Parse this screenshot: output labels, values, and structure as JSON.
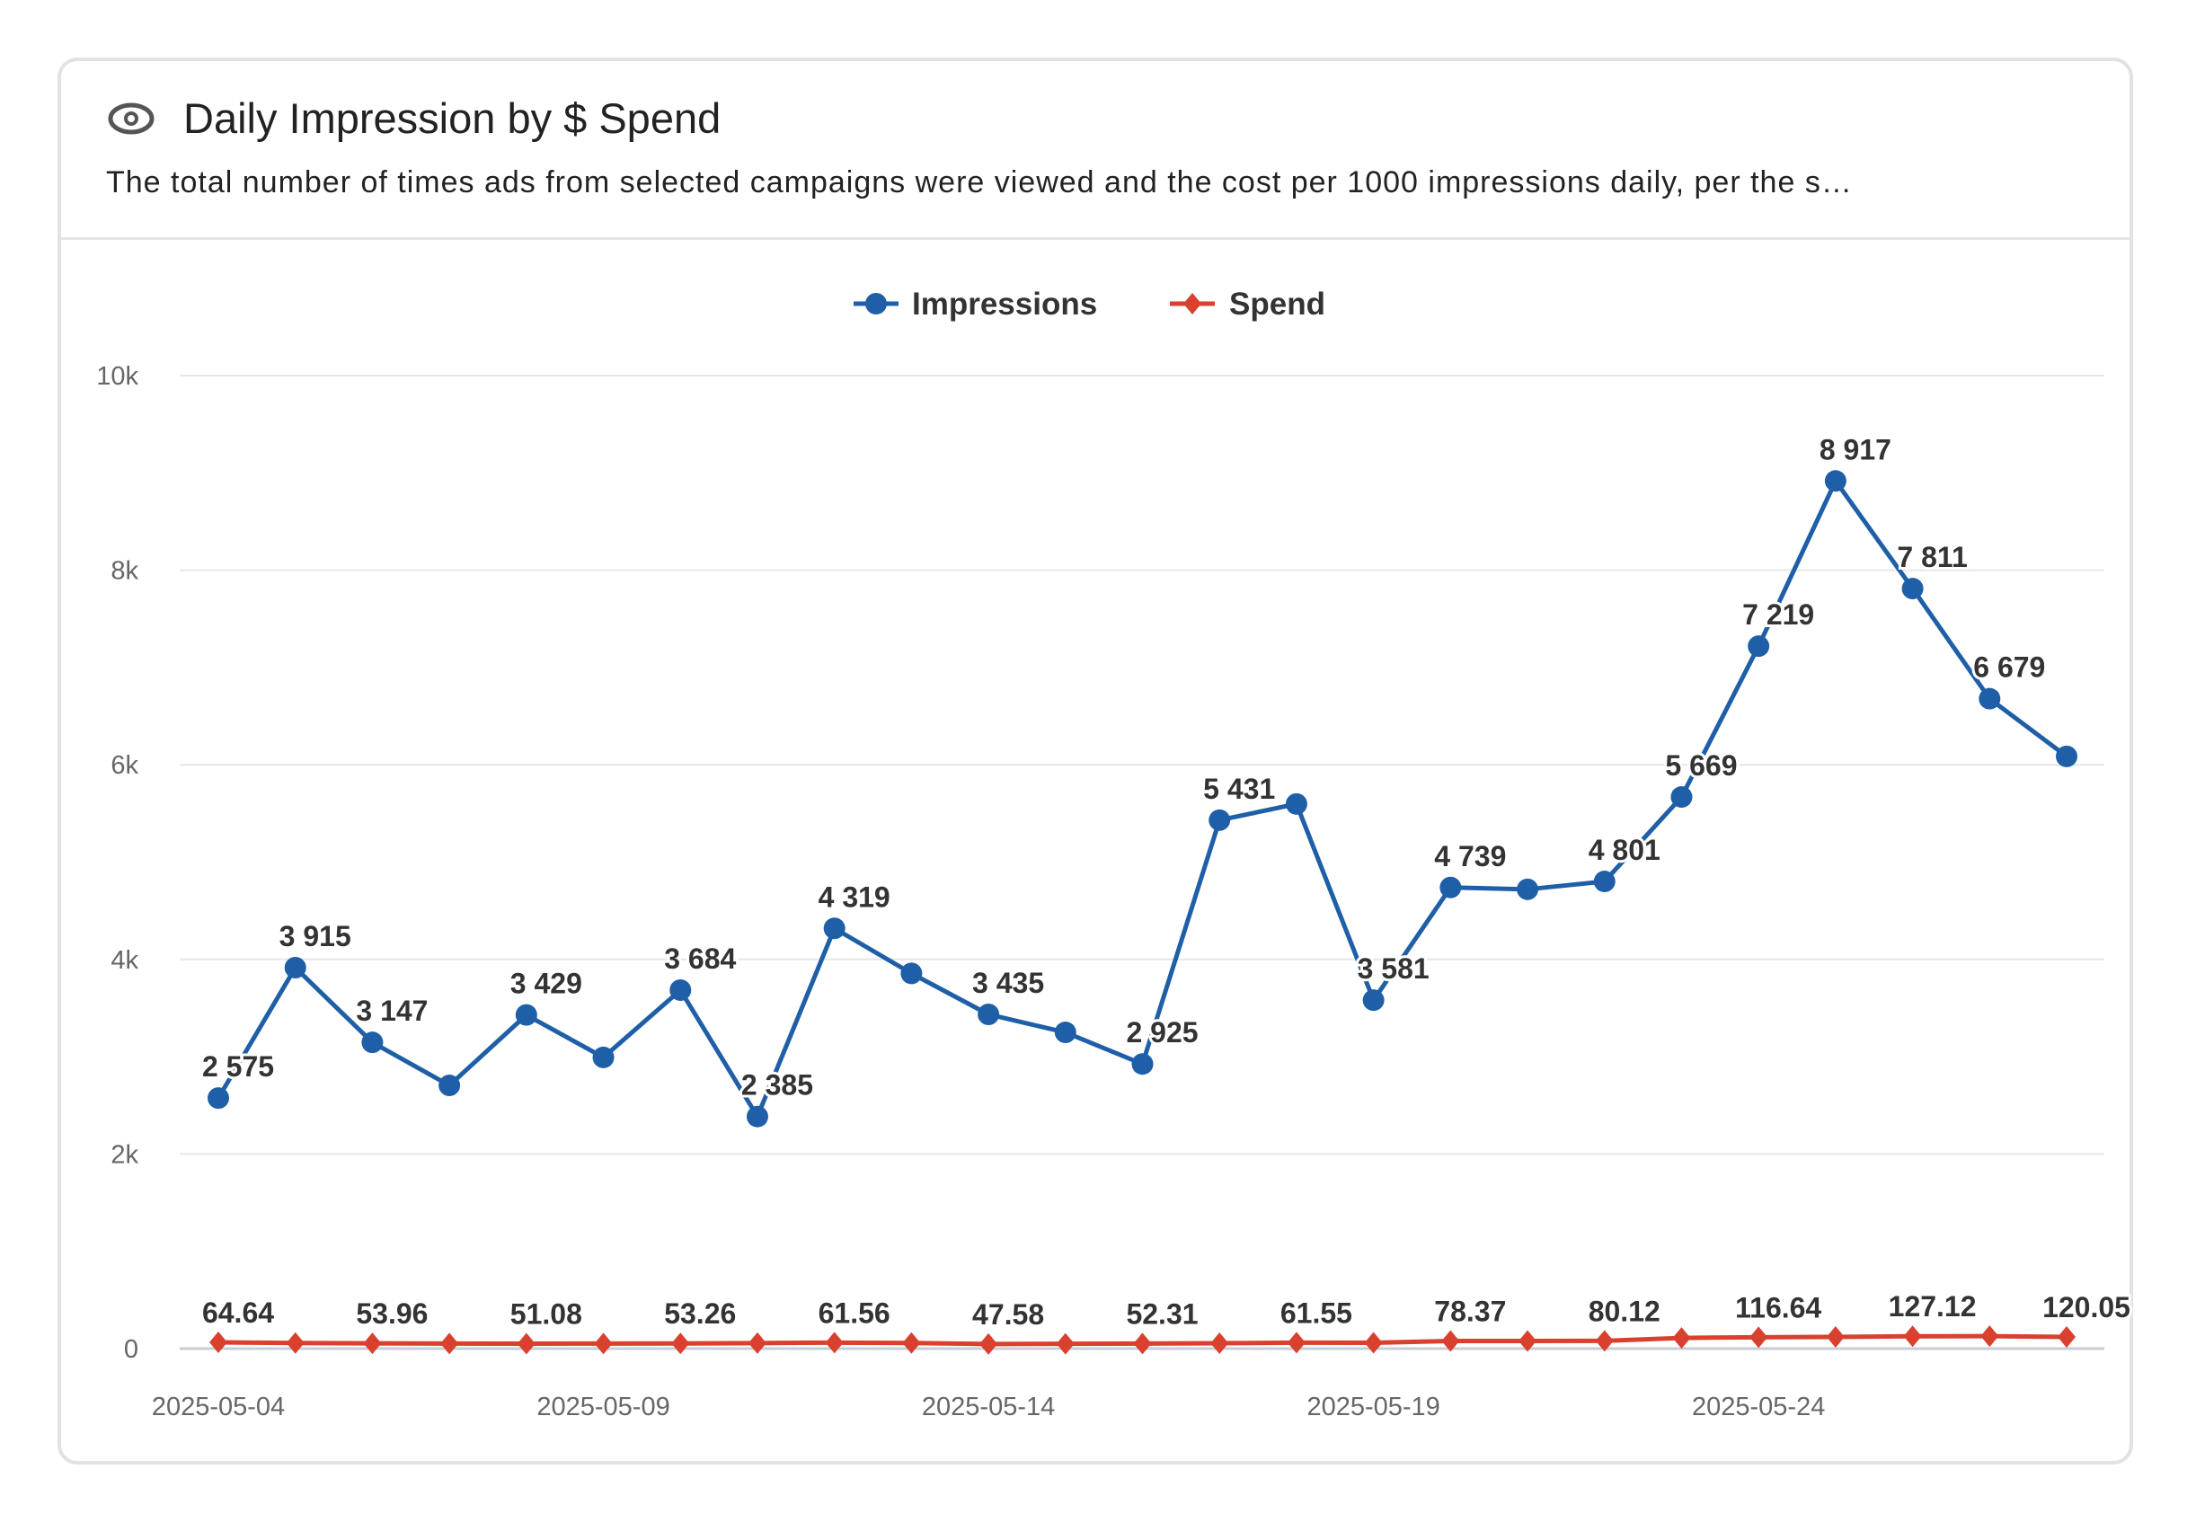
{
  "header": {
    "icon": "eye-icon",
    "title": "Daily Impression by $ Spend",
    "subtitle": "The total number of times ads from selected campaigns were viewed and the cost per 1000 impressions daily, per the s…"
  },
  "chart_data": {
    "type": "line",
    "title": "Daily Impression by $ Spend",
    "legend_position": "top",
    "grid": true,
    "ylim": [
      0,
      10000
    ],
    "y_ticks": [
      "0",
      "2k",
      "4k",
      "6k",
      "8k",
      "10k"
    ],
    "x_tick_labels": [
      "2025-05-04",
      "2025-05-09",
      "2025-05-14",
      "2025-05-19",
      "2025-05-24"
    ],
    "x": [
      "2025-05-04",
      "2025-05-05",
      "2025-05-06",
      "2025-05-07",
      "2025-05-08",
      "2025-05-09",
      "2025-05-10",
      "2025-05-11",
      "2025-05-12",
      "2025-05-13",
      "2025-05-14",
      "2025-05-15",
      "2025-05-16",
      "2025-05-17",
      "2025-05-18",
      "2025-05-19",
      "2025-05-20",
      "2025-05-21",
      "2025-05-22",
      "2025-05-23",
      "2025-05-24",
      "2025-05-25",
      "2025-05-26",
      "2025-05-27",
      "2025-05-28"
    ],
    "series": [
      {
        "name": "Impressions",
        "color": "#1f5fa8",
        "marker": "circle",
        "values": [
          2575,
          3915,
          3147,
          2705,
          3429,
          2993,
          3684,
          2385,
          4319,
          3856,
          3435,
          3250,
          2925,
          5431,
          5597,
          3581,
          4739,
          4720,
          4801,
          5669,
          7219,
          8917,
          7811,
          6679,
          6086
        ],
        "data_labels": [
          "2 575",
          "3 915",
          "3 147",
          null,
          "3 429",
          null,
          "3 684",
          "2 385",
          "4 319",
          null,
          "3 435",
          null,
          "2 925",
          "5 431",
          null,
          "3 581",
          "4 739",
          null,
          "4 801",
          "5 669",
          "7 219",
          "8 917",
          "7 811",
          "6 679",
          null
        ]
      },
      {
        "name": "Spend",
        "color": "#d9412e",
        "marker": "diamond",
        "values": [
          64.64,
          58,
          53.96,
          52,
          51.08,
          52,
          53.26,
          57,
          61.56,
          58,
          47.58,
          50,
          52.31,
          55,
          61.55,
          60,
          78.37,
          79,
          80.12,
          110,
          116.64,
          120,
          127.12,
          128,
          120.05
        ],
        "data_labels": [
          "64.64",
          null,
          "53.96",
          null,
          "51.08",
          null,
          "53.26",
          null,
          "61.56",
          null,
          "47.58",
          null,
          "52.31",
          null,
          "61.55",
          null,
          "78.37",
          null,
          "80.12",
          null,
          "116.64",
          null,
          "127.12",
          null,
          "120.05"
        ]
      }
    ]
  }
}
